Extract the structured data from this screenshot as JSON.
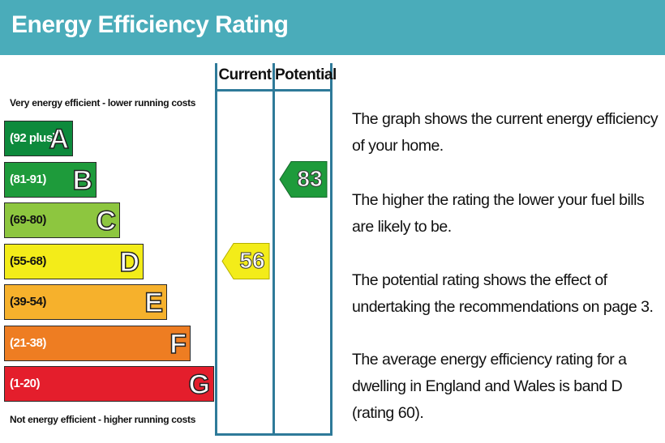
{
  "header": {
    "title": "Energy Efficiency Rating"
  },
  "scale": {
    "top_caption": "Very energy efficient - lower running costs",
    "bottom_caption": "Not energy efficient - higher running costs"
  },
  "columns": {
    "current_label": "Current",
    "potential_label": "Potential"
  },
  "chart_data": {
    "type": "bar",
    "bands": [
      {
        "letter": "A",
        "range": "(92 plus)",
        "color": "#0d8a3c"
      },
      {
        "letter": "B",
        "range": "(81-91)",
        "color": "#1e9b3b"
      },
      {
        "letter": "C",
        "range": "(69-80)",
        "color": "#8dc63f"
      },
      {
        "letter": "D",
        "range": "(55-68)",
        "color": "#f3ec19"
      },
      {
        "letter": "E",
        "range": "(39-54)",
        "color": "#f6b12c"
      },
      {
        "letter": "F",
        "range": "(21-38)",
        "color": "#ee7d22"
      },
      {
        "letter": "G",
        "range": "(1-20)",
        "color": "#e41e2c"
      }
    ],
    "current": {
      "value": 56,
      "band": "D",
      "color": "#f3ec19"
    },
    "potential": {
      "value": 83,
      "band": "B",
      "color": "#1e9b3b"
    }
  },
  "description": {
    "p1": "The graph shows the current energy efficiency of your home.",
    "p2": "The higher the rating the lower your fuel bills are likely to be.",
    "p3": "The potential rating shows the effect of undertaking the recommendations on page 3.",
    "p4": "The average energy efficiency rating for a dwelling in England and Wales is band D (rating 60)."
  }
}
